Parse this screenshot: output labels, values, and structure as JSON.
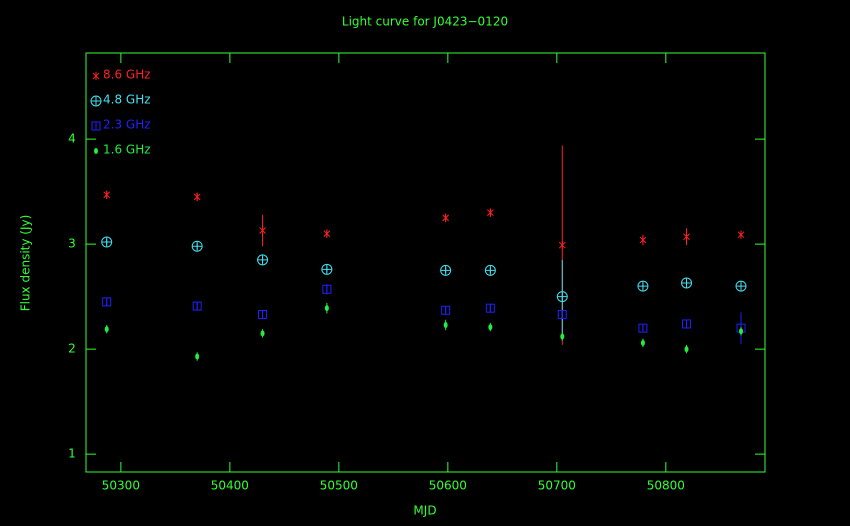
{
  "chart_data": {
    "type": "scatter",
    "title": "Light curve for J0423−0120",
    "x_label": "MJD",
    "y_label": "Flux density (Jy)",
    "xlim": [
      50268,
      50891
    ],
    "ylim": [
      0.83,
      4.82
    ],
    "xticks": [
      50300,
      50400,
      50500,
      50600,
      50700,
      50800
    ],
    "yticks": [
      1,
      2,
      3,
      4
    ],
    "x": [
      50287,
      50370,
      50430,
      50489,
      50598,
      50639,
      50705,
      50779,
      50819,
      50869
    ],
    "axis_color": "#33ff33",
    "legend": "upper left",
    "series": [
      {
        "name": "8.6 GHz",
        "color": "#ff2020",
        "marker": "asterisk",
        "values": [
          3.47,
          3.45,
          3.13,
          3.1,
          3.25,
          3.3,
          2.99,
          3.04,
          3.07,
          3.09
        ],
        "errors": [
          0.04,
          0.04,
          0.15,
          0.04,
          0.04,
          0.04,
          0.95,
          0.05,
          0.08,
          0.04
        ]
      },
      {
        "name": "4.8 GHz",
        "color": "#40e0f0",
        "marker": "circle-plus",
        "values": [
          3.02,
          2.98,
          2.85,
          2.76,
          2.75,
          2.75,
          2.5,
          2.6,
          2.63,
          2.6
        ],
        "errors": [
          0.03,
          0.03,
          0.03,
          0.03,
          0.03,
          0.03,
          0.35,
          0.03,
          0.03,
          0.03
        ]
      },
      {
        "name": "2.3 GHz",
        "color": "#2020ff",
        "marker": "square",
        "values": [
          2.45,
          2.41,
          2.33,
          2.57,
          2.37,
          2.39,
          2.33,
          2.2,
          2.24,
          2.2
        ],
        "errors": [
          0.04,
          0.04,
          0.04,
          0.05,
          0.04,
          0.04,
          0.04,
          0.04,
          0.04,
          0.15
        ]
      },
      {
        "name": "1.6 GHz",
        "color": "#20ee40",
        "marker": "dot",
        "values": [
          2.19,
          1.93,
          2.15,
          2.39,
          2.23,
          2.21,
          2.12,
          2.06,
          2.0,
          2.17
        ],
        "errors": [
          0.04,
          0.04,
          0.04,
          0.05,
          0.05,
          0.04,
          0.04,
          0.04,
          0.04,
          0.04
        ]
      }
    ]
  }
}
